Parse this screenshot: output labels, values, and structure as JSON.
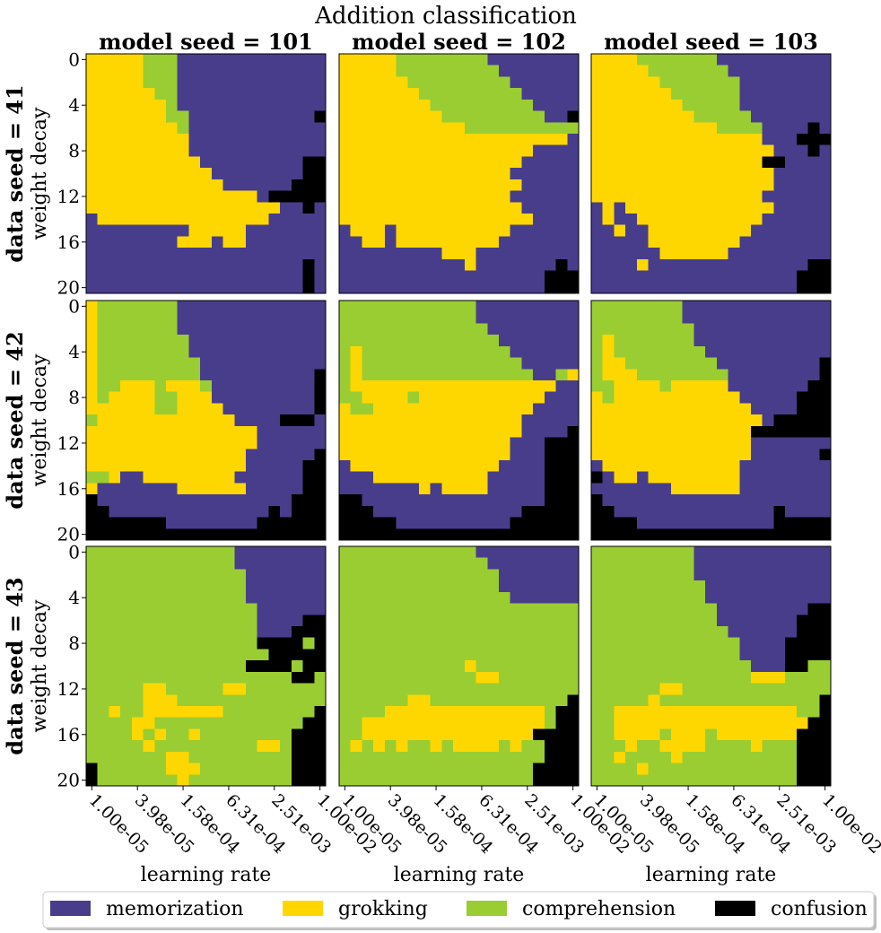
{
  "title": "Addition classification",
  "colors": {
    "memorization": "#483d8b",
    "grokking": "#ffd700",
    "comprehension": "#9acd32",
    "confusion": "#000000"
  },
  "col_titles": [
    "model seed = 101",
    "model seed = 102",
    "model seed = 103"
  ],
  "row_titles": [
    "data seed = 41",
    "data seed = 42",
    "data seed = 43"
  ],
  "legend": [
    {
      "key": "memorization",
      "label": "memorization"
    },
    {
      "key": "grokking",
      "label": "grokking"
    },
    {
      "key": "comprehension",
      "label": "comprehension"
    },
    {
      "key": "confusion",
      "label": "confusion"
    }
  ],
  "chart_data": {
    "type": "heatmap",
    "title": "Addition classification",
    "xlabel": "learning rate",
    "ylabel": "weight decay",
    "x_tick_labels": [
      "1.00e-05",
      "3.98e-05",
      "1.58e-04",
      "6.31e-04",
      "2.51e-03",
      "1.00e-02"
    ],
    "y_tick_labels": [
      "0",
      "4",
      "8",
      "12",
      "16",
      "20"
    ],
    "grid_size": [
      21,
      21
    ],
    "legend": "lower center",
    "categories": [
      "memorization",
      "grokking",
      "comprehension",
      "confusion"
    ],
    "code": {
      "M": "memorization",
      "G": "grokking",
      "C": "comprehension",
      "X": "confusion"
    },
    "panels": [
      {
        "data_seed": "41",
        "model_seed": "101",
        "rows": [
          "GGGGGCCCMMMMMMMMMMMMM",
          "GGGGGCCCMMMMMMMMMMMMM",
          "GGGGGCCCMMMMMMMMMMMMM",
          "GGGGGGCCMMMMMMMMMMMMM",
          "GGGGGGGCMMMMMMMMMMMMM",
          "GGGGGGGCCMMMMMMMMMMMX",
          "GGGGGGGGCMMMMMMMMMMMM",
          "GGGGGGGGGMMMMMMMMMMMM",
          "GGGGGGGGGMMMMMMMMMMMM",
          "GGGGGGGGGGMMMMMMMMMXX",
          "GGGGGGGGGGGMMMMMMMMXX",
          "GGGGGGGGGGGGMMMMMMXXX",
          "GGGGGGGGGGGGGGGMXXXXX",
          "GGGGGGGGGGGGGGGGGMMXM",
          "MGGGGGGGGGGGGGGGMMMMM",
          "MMMMMMMMMGGGGGMMMMMMM",
          "MMMMMMMMGGGMGGMMMMMMM",
          "MMMMMMMMMMMMMMMMMMMMM",
          "MMMMMMMMMMMMMMMMMMMXM",
          "MMMMMMMMMMMMMMMMMMMXM",
          "MMMMMMMMMMMMMMMMMMMXM"
        ]
      },
      {
        "data_seed": "41",
        "model_seed": "102",
        "rows": [
          "GGGGGCCCCCCCCMMMMMMMM",
          "GGGGGCCCCCCCCCMMMMMMM",
          "GGGGGGCCCCCCCCCMMMMMM",
          "GGGGGGGCCCCCCCCCMMMMM",
          "GGGGGGGGCCCCCCCCCMMMM",
          "GGGGGGGGGCCCCCCCCCMMX",
          "GGGGGGGGGGGCCCCCCCCCC",
          "GGGGGGGGGGGGGGGGGGGGM",
          "GGGGGGGGGGGGGGGGGMMMM",
          "GGGGGGGGGGGGGGGGMMMMM",
          "GGGGGGGGGGGGGGGMMMMMM",
          "GGGGGGGGGGGGGGGGMMMMM",
          "GGGGGGGGGGGGGGGMMMMMM",
          "GGGGGGGGGGGGGGGGMMMMM",
          "GGGGGGGGGGGGGGGGGMMMM",
          "MGGGMGGGGGGGGGGMMMMMM",
          "MMGGMGGGGGGGGGMMMMMMM",
          "MMMMMMMMMGGGMMMMMMMMM",
          "MMMMMMMMMMMGMMMMMMMXM",
          "MMMMMMMMMMMMMMMMMMXXX",
          "MMMMMMMMMMMMMMMMMMXXX"
        ]
      },
      {
        "data_seed": "41",
        "model_seed": "103",
        "rows": [
          "GGGGCCCCCCCMMMMMMMMMM",
          "GGGGGCCCCCCCMMMMMMMMM",
          "GGGGGGCCCCCCCMMMMMMMM",
          "GGGGGGGCCCCCCMMMMMMMM",
          "GGGGGGGGCCCCCMMMMMMMM",
          "GGGGGGGGGCCCCCMMMMMMM",
          "GGGGGGGGGGGCCCCMMMMXM",
          "GGGGGGGGGGGGGGGMMMXXX",
          "GGGGGGGGGGGGGGGGMMMXM",
          "GGGGGGGGGGGGGGGXXMMMM",
          "GGGGGGGGGGGGGGGGMMMMM",
          "GGGGGGGGGGGGGGGGMMMMM",
          "GGGGGGGGGGGGGGGMMMMMM",
          "MGMGGGGGGGGGGGGGMMMMM",
          "MGMMGGGGGGGGGGGMMMMMM",
          "MMGMMGGGGGGGGGMMMMMMM",
          "MMMMMGGGGGGGGMMMMMMMM",
          "MMMMMMGGGGGGMMMMMMMMM",
          "MMMMGMMMMMMMMMMMMMMXX",
          "MMMMMMMMMMMMMMMMMMXXX",
          "MMMMMMMMMMMMMMMMMMXXX"
        ]
      },
      {
        "data_seed": "42",
        "model_seed": "101",
        "rows": [
          "GCCCCCCCMMMMMMMMMMMMM",
          "GCCCCCCCMMMMMMMMMMMMM",
          "GCCCCCCCMMMMMMMMMMMMM",
          "GCCCCCCCCMMMMMMMMMMMM",
          "GCCCCCCCCMMMMMMMMMMMM",
          "GCCCCCCCCCMMMMMMMMMMM",
          "GCCCCCCCCCMMMMMMMMMMX",
          "GCCGGGCGGGCMMMMMMMMMX",
          "GCGGGGCCGGGMMMMMMMMMX",
          "GGGGGGCCGGGGMMMMMMMMX",
          "CGGGGGGGGGGGGMMMMXXXM",
          "GGGGGGGGGGGGGGGMMMMMM",
          "GGGGGGGGGGGGGGGMMMMMM",
          "GGGGGGGGGGGGGGMMMMMMX",
          "GGGGGGGGGGGGGGMMMMMXX",
          "CCGMMGGGGGGGGMMMMMMXX",
          "GMMMMMMMGGGGGGMMMMMXX",
          "XMMMMMMMMMMMMMMMMMXXX",
          "XXMMMMMMMMMMMMMMXMXXX",
          "XXXXXXXMMMMMMMMXXXXXX",
          "XXXXXXXXXXXXXXXXXXXXX"
        ]
      },
      {
        "data_seed": "42",
        "model_seed": "102",
        "rows": [
          "CCCCCCCCCCCCMMMMMMMMM",
          "CCCCCCCCCCCCMMMMMMMMM",
          "CCCCCCCCCCCCCMMMMMMMM",
          "CCCCCCCCCCCCCCMMMMMMM",
          "CGCCCCCCCCCCCCCMMMMMM",
          "CGCCCCCCCCCCCCCCMMMMM",
          "CGCCCCCCCCCCCCCCCMMCG",
          "CGGGGGGGGGGGGGGGGGGMM",
          "CCGGGGCGGGGGGGGGGGMMM",
          "GCCGGGGGGGGGGGGGGMMMM",
          "GGGGGGGGGGGGGGGGMMMMM",
          "GGGGGGGGGGGGGGGGMMMMX",
          "GGGGGGGGGGGGGGGMMMXXX",
          "GGGGGGGGGGGGGGGMMMXXX",
          "MGGGGGGGGGGGGGMMMMXXX",
          "MMMGGGGGGGGGGMMMMMXXX",
          "MMMMMMMGMGGGGMMMMMXXX",
          "XXMMMMMMMMMMMMMMMMXXX",
          "XXXMMMMMMMMMMMMMXXXXX",
          "XXXXXMMMMMMMMMMXXXXXX",
          "XXXXXXXXXXXXXXXXXXXXX"
        ]
      },
      {
        "data_seed": "42",
        "model_seed": "103",
        "rows": [
          "CCCCCCCCMMMMMMMMMMMMM",
          "CCCCCCCCMMMMMMMMMMMMM",
          "CCCCCCCCCMMMMMMMMMMMM",
          "CGCCCCCCCMMMMMMMMMMMM",
          "CGCCCCCCCCMMMMMMMMMMM",
          "CGGCCCCCCCCMMMMMMMMMX",
          "CGGGCCCCCCCCMMMMMMMMX",
          "CCGGGGCGGGGGMMMMMMMXX",
          "GCGGGGGGGGGGGMMMMMXXX",
          "GGGGGGGGGGGGGGMMMMXXX",
          "GGGGGGGGGGGGGGGMXXXXX",
          "GGGGGGGGGGGGGGXXXXXXX",
          "GGGGGGGGGGGGGGMMMMMMM",
          "GGGGGGGGGGGGGGMMMMMMX",
          "MGGGGGGGGGGGGMMMMMMMM",
          "XMGGMGGGGGGGGMMMMMMMM",
          "MMMMMMMGGGGGGMMMMMMMM",
          "XMMMMMMMMMMMMMMMMMMMM",
          "XXMMMMMMMMMMMMMMXMMMM",
          "XXXXMMMMMMMMMMMMXXXXX",
          "XXXXXXXXXXXXXXXXXXXXX"
        ]
      },
      {
        "data_seed": "43",
        "model_seed": "101",
        "rows": [
          "CCCCCCCCCCCCCMMMMMMMM",
          "CCCCCCCCCCCCCMMMMMMMM",
          "CCCCCCCCCCCCCCMMMMMMM",
          "CCCCCCCCCCCCCCMMMMMMM",
          "CCCCCCCCCCCCCCMMMMMMM",
          "CCCCCCCCCCCCCCCMMMMMM",
          "CCCCCCCCCCCCCCCMMMMXX",
          "CCCCCCCCCCCCCCCMMMXXX",
          "CCCCCCCCCCCCCCCXXXXCX",
          "CCCCCCCCCCCCCCCCXXXXX",
          "CCCCCCCCCCCCCCXXXXCXX",
          "CCCCCCCCCCCCCCCCCCXXC",
          "CCCCCGGCCCCCGGCCCCCCC",
          "CCCCCGGGCCCCCCCCCCCCC",
          "CCGCCGGGGGGGCCCCCCCCX",
          "CCCCGGCCCCCCCCCCCCCXX",
          "CCCCGCGCCGCCCCCCCCXXX",
          "CCCCCGCCCCCCCCCGGCXXX",
          "CCCCCCCGGCCCCCCCCCXXX",
          "XCCCCCCGGGCCCCCCCCXXX",
          "XCCCCCCCGCCCCCCCCCXXX"
        ]
      },
      {
        "data_seed": "43",
        "model_seed": "102",
        "rows": [
          "CCCCCCCCCCCCMMMMMMMMM",
          "CCCCCCCCCCCCCMMMMMMMM",
          "CCCCCCCCCCCCCCMMMMMMM",
          "CCCCCCCCCCCCCCMMMMMMM",
          "CCCCCCCCCCCCCCCMMMMMM",
          "CCCCCCCCCCCCCCCCCCCCC",
          "CCCCCCCCCCCCCCCCCCCCC",
          "CCCCCCCCCCCCCCCCCCCCC",
          "CCCCCCCCCCCCCCCCCCCCC",
          "CCCCCCCCCCCCCCCCCCCCC",
          "CCCCCCCCCCCGCCCCCCCCC",
          "CCCCCCCCCCCCGGCCCCCCC",
          "CCCCCCCCCCCCCCCCCCCCC",
          "CCCCCCGGCCCCCCCCCCCCX",
          "CCCCGGGGGGGGGGGGGGCXX",
          "CCGGGGGGGGGGGGGGGGCXX",
          "CCGGGGGGGGGGGGGGGXXXX",
          "CGCGCGCCGCGGGGCGCCXXX",
          "CCCCCCCCCCCCCCCCCCXXX",
          "CCCCCCCCCCCCCCCCCXXXX",
          "CCCCCCCCCCCCCCCCCXXXX"
        ]
      },
      {
        "data_seed": "43",
        "model_seed": "103",
        "rows": [
          "CCCCCCCCCMMMMMMMMMMMM",
          "CCCCCCCCCMMMMMMMMMMMM",
          "CCCCCCCCCMMMMMMMMMMMM",
          "CCCCCCCCCCMMMMMMMMMMM",
          "CCCCCCCCCCMMMMMMMMMMM",
          "CCCCCCCCCCCMMMMMMMMXX",
          "CCCCCCCCCCCMMMMMMMXXX",
          "CCCCCCCCCCCCMMMMMMXXX",
          "CCCCCCCCCCCCCMMMMXXXX",
          "CCCCCCCCCCCCCMMMMXXXX",
          "CCCCCCCCCCCCCCMMMXXCC",
          "CCCCCCCCCCCCCCGGGCCCC",
          "CCCCCCGGCCCCCCCCCCCCC",
          "CCCCCGCCCCCCCCCCCCCCX",
          "CCGGGGGGGGGGGGGGGGCCX",
          "CCGGGGGGGGGGGGGGGGGXX",
          "CCGGGGCGGGCGGGGGGGXXX",
          "CCCGCCGGGGCCCCGCCCXXX",
          "CCGCCCCGCCCCCCCCCCXXX",
          "CCCCGCCCCCCCCCCCCCXXX",
          "CCCCCCCCCCCCCCCCCCXXX"
        ]
      }
    ]
  }
}
